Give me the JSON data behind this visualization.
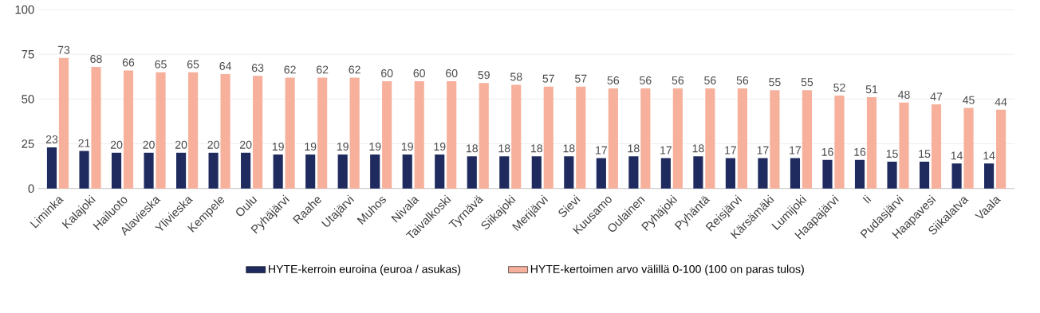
{
  "chart_data": {
    "type": "bar",
    "categories": [
      "Liminka",
      "Kalajoki",
      "Hailuoto",
      "Alavieska",
      "Ylivieska",
      "Kempele",
      "Oulu",
      "Pyhäjärvi",
      "Raahe",
      "Utajärvi",
      "Muhos",
      "Nivala",
      "Taivalkoski",
      "Tyrnävä",
      "Siikajoki",
      "Merijärvi",
      "Sievi",
      "Kuusamo",
      "Oulainen",
      "Pyhäjoki",
      "Pyhäntä",
      "Reisjärvi",
      "Kärsämäki",
      "Lumijoki",
      "Haapajärvi",
      "Ii",
      "Pudasjärvi",
      "Haapavesi",
      "Siikalatva",
      "Vaala"
    ],
    "series": [
      {
        "name": "HYTE-kerroin euroina (euroa / asukas)",
        "color": "#1f2a5e",
        "values": [
          23,
          21,
          20,
          20,
          20,
          20,
          20,
          19,
          19,
          19,
          19,
          19,
          19,
          18,
          18,
          18,
          18,
          17,
          18,
          17,
          18,
          17,
          17,
          17,
          16,
          16,
          15,
          15,
          14,
          14
        ]
      },
      {
        "name": "HYTE-kertoimen arvo välillä 0-100 (100 on paras tulos)",
        "color": "#f6b09b",
        "values": [
          73,
          68,
          66,
          65,
          65,
          64,
          63,
          62,
          62,
          62,
          60,
          60,
          60,
          59,
          58,
          57,
          57,
          56,
          56,
          56,
          56,
          56,
          55,
          55,
          52,
          51,
          48,
          47,
          45,
          44
        ]
      }
    ],
    "ylim": [
      0,
      100
    ],
    "yticks": [
      0,
      25,
      50,
      75,
      100
    ],
    "grid": "y",
    "legend": "bottom",
    "data_labels": true
  }
}
